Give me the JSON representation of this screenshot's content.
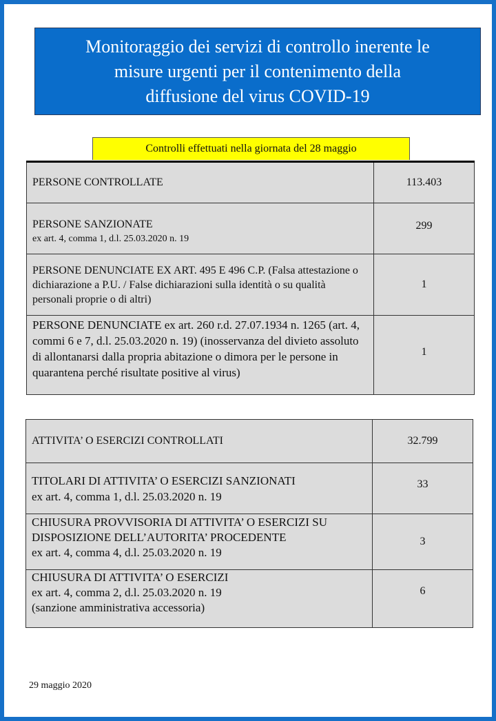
{
  "title_lines": [
    "Monitoraggio dei servizi di controllo inerente le",
    "misure urgenti per il contenimento della",
    "diffusione del virus COVID-19"
  ],
  "subtitle": "Controlli effettuati nella giornata del 28 maggio",
  "colors": {
    "frame": "#1670c8",
    "title_bg": "#0a6dcb",
    "subtitle_bg": "#ffff00",
    "cell_bg": "#dcdcdc"
  },
  "persone": [
    {
      "label": "PERSONE CONTROLLATE",
      "note": "",
      "value": "113.403"
    },
    {
      "label": "PERSONE SANZIONATE",
      "note": "ex art. 4, comma 1, d.l. 25.03.2020 n. 19",
      "value": "299"
    },
    {
      "label": "PERSONE DENUNCIATE EX ART. 495 E 496 C.P. (Falsa attestazione o dichiarazione a P.U. / False dichiarazioni sulla identità o su qualità personali proprie o di altri)",
      "note": "",
      "value": "1"
    },
    {
      "label": "PERSONE DENUNCIATE ex art. 260 r.d. 27.07.1934 n. 1265 (art. 4, commi 6 e 7, d.l. 25.03.2020 n. 19) (inosservanza del divieto assoluto di allontanarsi dalla propria abitazione o dimora per le persone in quarantena perché risultate positive al virus)",
      "note": "",
      "value": "1"
    }
  ],
  "attivita": [
    {
      "label": "ATTIVITA’ O ESERCIZI CONTROLLATI",
      "note": "",
      "value": "32.799"
    },
    {
      "label": "TITOLARI DI ATTIVITA’ O ESERCIZI SANZIONATI",
      "note": "ex art. 4, comma 1, d.l. 25.03.2020 n. 19",
      "value": "33"
    },
    {
      "label": "CHIUSURA PROVVISORIA DI ATTIVITA’ O ESERCIZI SU DISPOSIZIONE DELL’AUTORITA’ PROCEDENTE",
      "note": "ex art. 4, comma 4, d.l. 25.03.2020 n. 19",
      "value": "3"
    },
    {
      "label": "CHIUSURA DI ATTIVITA’ O ESERCIZI",
      "note": "ex art. 4, comma 2, d.l. 25.03.2020 n. 19 (sanzione amministrativa accessoria)",
      "value": "6"
    }
  ],
  "date": "29 maggio 2020"
}
